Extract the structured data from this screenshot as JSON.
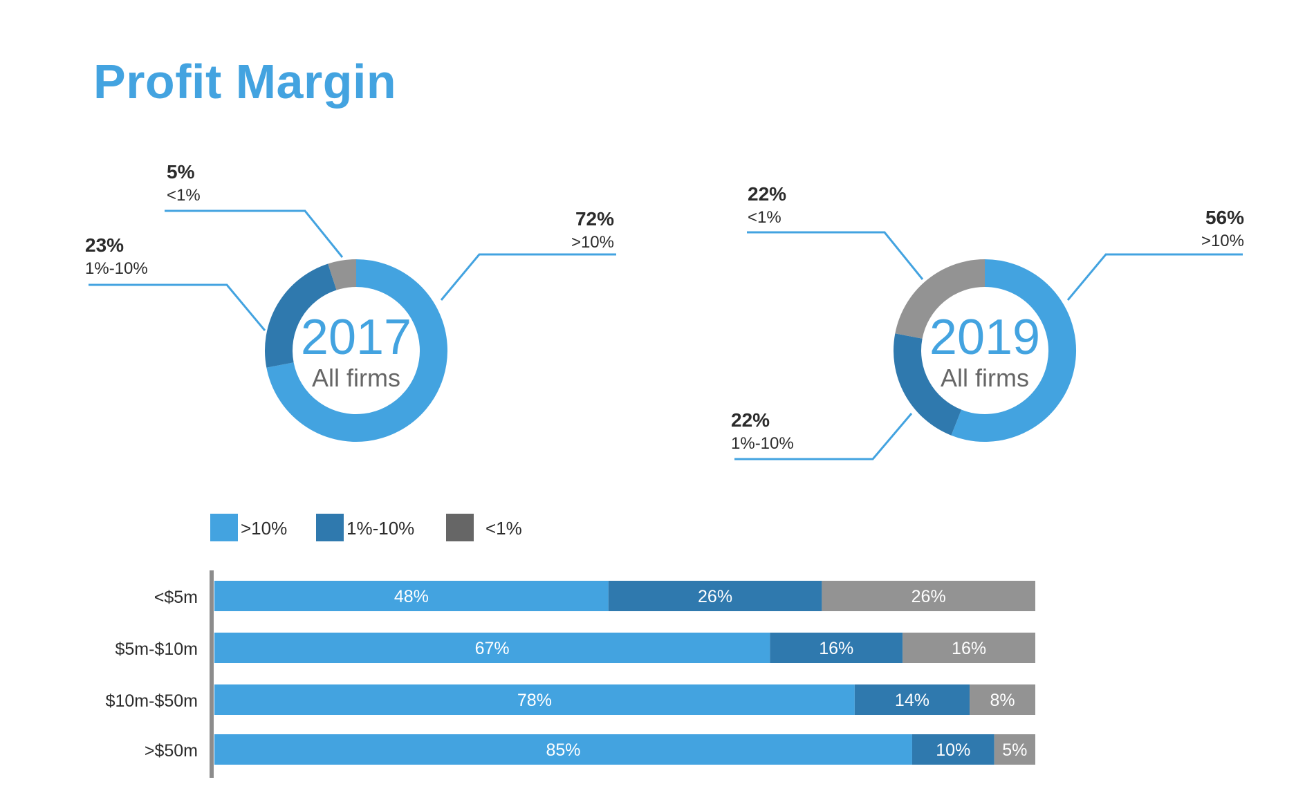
{
  "title": "Profit Margin",
  "colors": {
    "title": "#43a3e0",
    "gt10": "#43a3e0",
    "mid": "#2f79ae",
    "lt1_donut": "#939393",
    "lt1_legend": "#666666",
    "callout": "#43a3e0"
  },
  "chart_data": [
    {
      "type": "pie",
      "subtype": "donut",
      "center_label": "2017",
      "center_sublabel": "All firms",
      "slices": [
        {
          "label": ">10%",
          "value": 72,
          "value_label": "72%"
        },
        {
          "label": "1%-10%",
          "value": 23,
          "value_label": "23%"
        },
        {
          "label": "<1%",
          "value": 5,
          "value_label": "5%"
        }
      ]
    },
    {
      "type": "pie",
      "subtype": "donut",
      "center_label": "2019",
      "center_sublabel": "All firms",
      "slices": [
        {
          "label": ">10%",
          "value": 56,
          "value_label": "56%"
        },
        {
          "label": "1%-10%",
          "value": 22,
          "value_label": "22%"
        },
        {
          "label": "<1%",
          "value": 22,
          "value_label": "22%"
        }
      ]
    },
    {
      "type": "bar",
      "orientation": "horizontal",
      "stacked": true,
      "categories": [
        "<$5m",
        "$5m-$10m",
        "$10m-$50m",
        ">$50m"
      ],
      "series": [
        {
          "name": ">10%",
          "values": [
            48,
            67,
            78,
            85
          ],
          "labels": [
            "48%",
            "67%",
            "78%",
            "85%"
          ]
        },
        {
          "name": "1%-10%",
          "values": [
            26,
            16,
            14,
            10
          ],
          "labels": [
            "26%",
            "16%",
            "14%",
            "10%"
          ]
        },
        {
          "name": "<1%",
          "values": [
            26,
            16,
            8,
            5
          ],
          "labels": [
            "26%",
            "16%",
            "8%",
            "5%"
          ]
        }
      ],
      "legend_position": "top-left"
    }
  ]
}
